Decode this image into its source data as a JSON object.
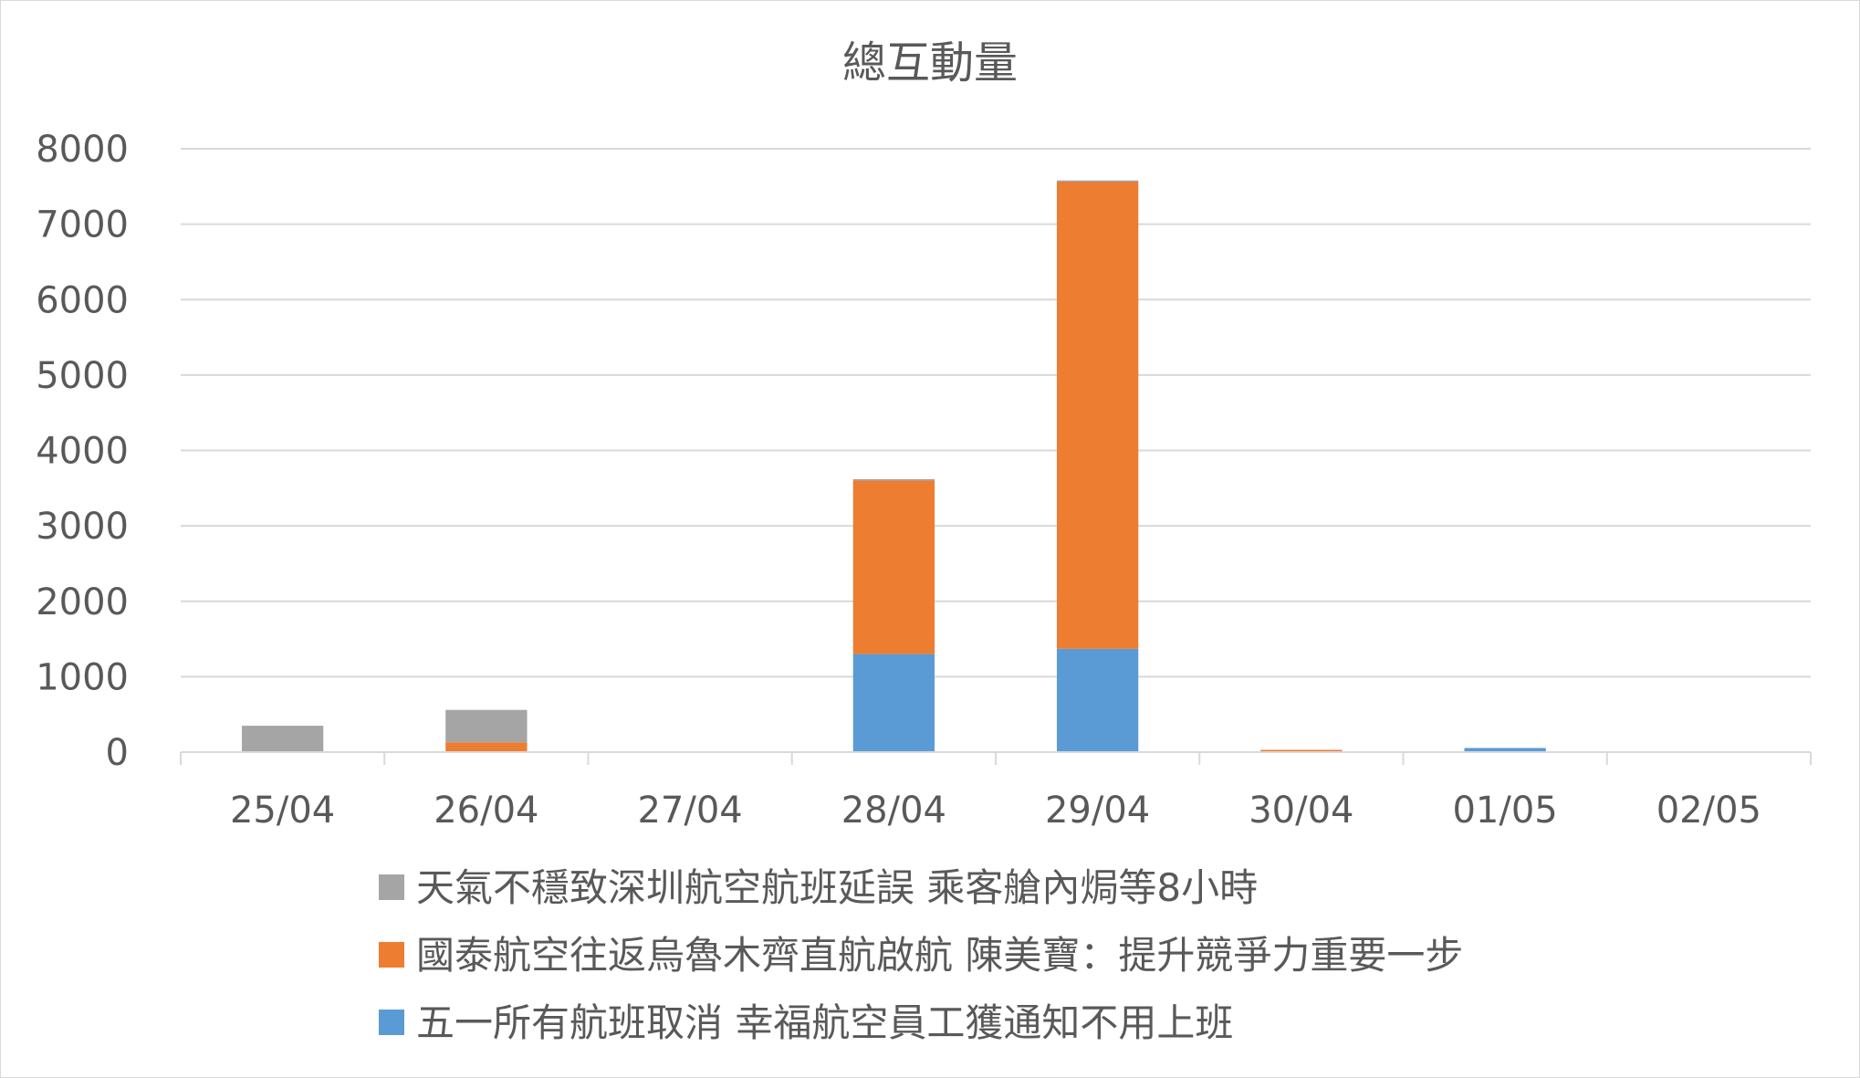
{
  "chart_data": {
    "type": "bar",
    "stacked": true,
    "title": "總互動量",
    "xlabel": "",
    "ylabel": "",
    "categories": [
      "25/04",
      "26/04",
      "27/04",
      "28/04",
      "29/04",
      "30/04",
      "01/05",
      "02/05"
    ],
    "y_ticks": [
      "0",
      "1000",
      "2000",
      "3000",
      "4000",
      "5000",
      "6000",
      "7000",
      "8000"
    ],
    "ylim": [
      0,
      8000
    ],
    "grid": true,
    "legend_position": "bottom",
    "series": [
      {
        "name": "五一所有航班取消 幸福航空員工獲通知不用上班",
        "color": "#5b9bd5",
        "values": [
          0,
          0,
          0,
          1300,
          1370,
          0,
          55,
          0
        ]
      },
      {
        "name": "國泰航空往返烏魯木齊直航啟航 陳美寶：提升競爭力重要一步",
        "color": "#ed7d31",
        "values": [
          0,
          130,
          0,
          2300,
          6200,
          30,
          0,
          0
        ]
      },
      {
        "name": "天氣不穩致深圳航空航班延誤 乘客艙內焗等8小時",
        "color": "#a5a5a5",
        "values": [
          350,
          430,
          0,
          20,
          10,
          0,
          0,
          0
        ]
      }
    ],
    "legend_order": [
      2,
      1,
      0
    ]
  }
}
